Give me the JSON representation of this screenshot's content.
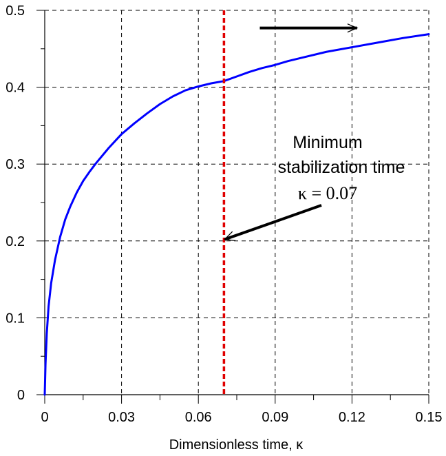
{
  "chart_data": {
    "type": "line",
    "title": "",
    "xlabel": "Dimensionless time, κ",
    "ylabel": "",
    "xlim": [
      0,
      0.15
    ],
    "ylim": [
      0,
      0.5
    ],
    "x_ticks": [
      0,
      0.03,
      0.06,
      0.09,
      0.12,
      0.15
    ],
    "x_tick_labels": [
      "0",
      "0.03",
      "0.06",
      "0.09",
      "0.12",
      "0.15"
    ],
    "y_ticks": [
      0,
      0.1,
      0.2,
      0.3,
      0.4,
      0.5
    ],
    "y_tick_labels": [
      "0",
      "0.1",
      "0.2",
      "0.3",
      "0.4",
      "0.5"
    ],
    "grid": true,
    "grid_style": "dashed",
    "series": [
      {
        "color": "#0000ff",
        "x": [
          0,
          0.0003,
          0.0008,
          0.0015,
          0.0025,
          0.004,
          0.006,
          0.008,
          0.01,
          0.0125,
          0.015,
          0.0175,
          0.02,
          0.025,
          0.03,
          0.035,
          0.04,
          0.045,
          0.05,
          0.055,
          0.06,
          0.065,
          0.07,
          0.075,
          0.08,
          0.085,
          0.09,
          0.095,
          0.1,
          0.11,
          0.12,
          0.13,
          0.14,
          0.15
        ],
        "y": [
          0,
          0.04,
          0.08,
          0.115,
          0.145,
          0.175,
          0.205,
          0.228,
          0.245,
          0.263,
          0.278,
          0.29,
          0.301,
          0.321,
          0.339,
          0.353,
          0.366,
          0.378,
          0.388,
          0.396,
          0.401,
          0.405,
          0.408,
          0.414,
          0.42,
          0.425,
          0.429,
          0.434,
          0.438,
          0.446,
          0.452,
          0.458,
          0.464,
          0.469
        ]
      }
    ],
    "vertical_line": {
      "x": 0.07,
      "color": "#e00000",
      "style": "dotted"
    },
    "annotations": {
      "label_line1": "Minimum",
      "label_line2": "stabilization time",
      "label_kappa": "κ = 0.07",
      "point": {
        "x": 0.07,
        "y": 0.202
      },
      "right_arrow": {
        "x1": 0.084,
        "x2": 0.122,
        "y": 0.477
      }
    }
  }
}
